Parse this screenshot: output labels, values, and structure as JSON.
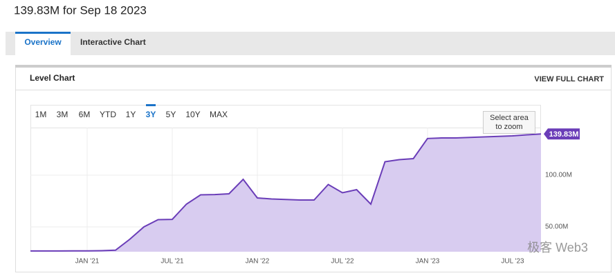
{
  "header": {
    "title": "139.83M for Sep 18 2023"
  },
  "tabs": [
    "Overview",
    "Interactive Chart"
  ],
  "panel": {
    "title": "Level Chart",
    "action": "VIEW FULL CHART"
  },
  "range_buttons": [
    "1M",
    "3M",
    "6M",
    "YTD",
    "1Y",
    "3Y",
    "5Y",
    "10Y",
    "MAX"
  ],
  "active_range_index": 5,
  "zoom_hint": [
    "Select area",
    "to zoom"
  ],
  "watermark": "极客 Web3",
  "chart_data": {
    "type": "line",
    "x": [
      "2020-09",
      "2020-10",
      "2020-11",
      "2020-12",
      "2021-01",
      "2021-02",
      "2021-03",
      "2021-04",
      "2021-05",
      "2021-06",
      "2021-07",
      "2021-08",
      "2021-09",
      "2021-10",
      "2021-11",
      "2021-12",
      "2022-01",
      "2022-02",
      "2022-03",
      "2022-04",
      "2022-05",
      "2022-06",
      "2022-07",
      "2022-08",
      "2022-09",
      "2022-10",
      "2022-11",
      "2022-12",
      "2023-01",
      "2023-02",
      "2023-03",
      "2023-04",
      "2023-05",
      "2023-06",
      "2023-07",
      "2023-08",
      "2023-09"
    ],
    "values": [
      26.7,
      26.7,
      26.7,
      26.8,
      26.8,
      27,
      27.5,
      38,
      50,
      57,
      57.3,
      72,
      81,
      81.3,
      82,
      96,
      78,
      77,
      76.5,
      76,
      76,
      91,
      83,
      86,
      72,
      113,
      115,
      116,
      135.5,
      136,
      136,
      136.5,
      137,
      137.5,
      138,
      139,
      139.83
    ],
    "color": "#6a3db8",
    "fill": "#d8ccf0",
    "end_label": "139.83M",
    "xlim": [
      "2020-09",
      "2023-09"
    ],
    "xticks": [
      {
        "value": "2021-01",
        "label": "JAN '21"
      },
      {
        "value": "2021-07",
        "label": "JUL '21"
      },
      {
        "value": "2022-01",
        "label": "JAN '22"
      },
      {
        "value": "2022-07",
        "label": "JUL '22"
      },
      {
        "value": "2023-01",
        "label": "JAN '23"
      },
      {
        "value": "2023-07",
        "label": "JUL '23"
      }
    ],
    "ylim": [
      26,
      146
    ],
    "yticks": [
      {
        "value": 50,
        "label": "50.00M"
      },
      {
        "value": 100,
        "label": "100.00M"
      }
    ],
    "grid": true
  }
}
